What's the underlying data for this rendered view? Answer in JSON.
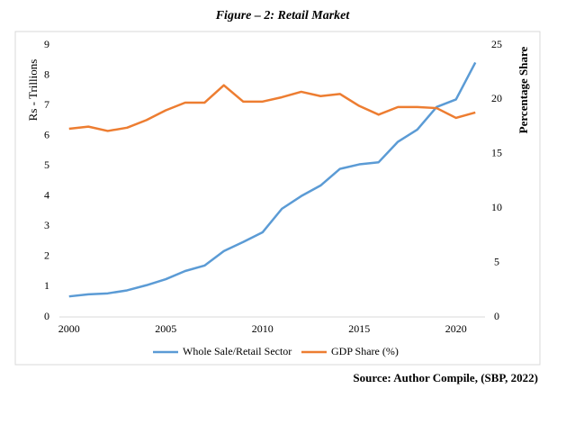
{
  "chart_data": {
    "type": "line",
    "title": "Figure – 2: Retail Market",
    "y_label": "Rs - Trillions",
    "y2_label": "Percentage Share",
    "source": "Source: Author Compile, (SBP, 2022)",
    "x": [
      2000,
      2001,
      2002,
      2003,
      2004,
      2005,
      2006,
      2007,
      2008,
      2009,
      2010,
      2011,
      2012,
      2013,
      2014,
      2015,
      2016,
      2017,
      2018,
      2019,
      2020,
      2021
    ],
    "series": [
      {
        "name": "Whole Sale/Retail Sector",
        "color": "#5b9bd5",
        "values": [
          0.68,
          0.75,
          0.78,
          0.88,
          1.05,
          1.25,
          1.52,
          1.7,
          2.18,
          2.48,
          2.8,
          3.58,
          4.0,
          4.35,
          4.9,
          5.05,
          5.12,
          5.8,
          6.2,
          6.95,
          7.2,
          8.42
        ]
      },
      {
        "name": "GDP Share (%)",
        "color": "#ed7d31",
        "axis": "y2",
        "values": [
          17.3,
          17.5,
          17.1,
          17.4,
          18.1,
          19.0,
          19.7,
          19.7,
          21.3,
          19.8,
          19.8,
          20.2,
          20.7,
          20.3,
          20.5,
          19.4,
          18.6,
          19.3,
          19.3,
          19.2,
          18.3,
          18.8
        ]
      }
    ],
    "xlim": [
      1999.5,
      2021.5
    ],
    "xticks": [
      2000,
      2005,
      2010,
      2015,
      2020
    ],
    "ylim": [
      0,
      9
    ],
    "yticks": [
      0,
      1,
      2,
      3,
      4,
      5,
      6,
      7,
      8,
      9
    ],
    "y2lim": [
      0,
      25
    ],
    "y2ticks": [
      0,
      5,
      10,
      15,
      20,
      25
    ],
    "grid": false,
    "legend": "bottom"
  }
}
